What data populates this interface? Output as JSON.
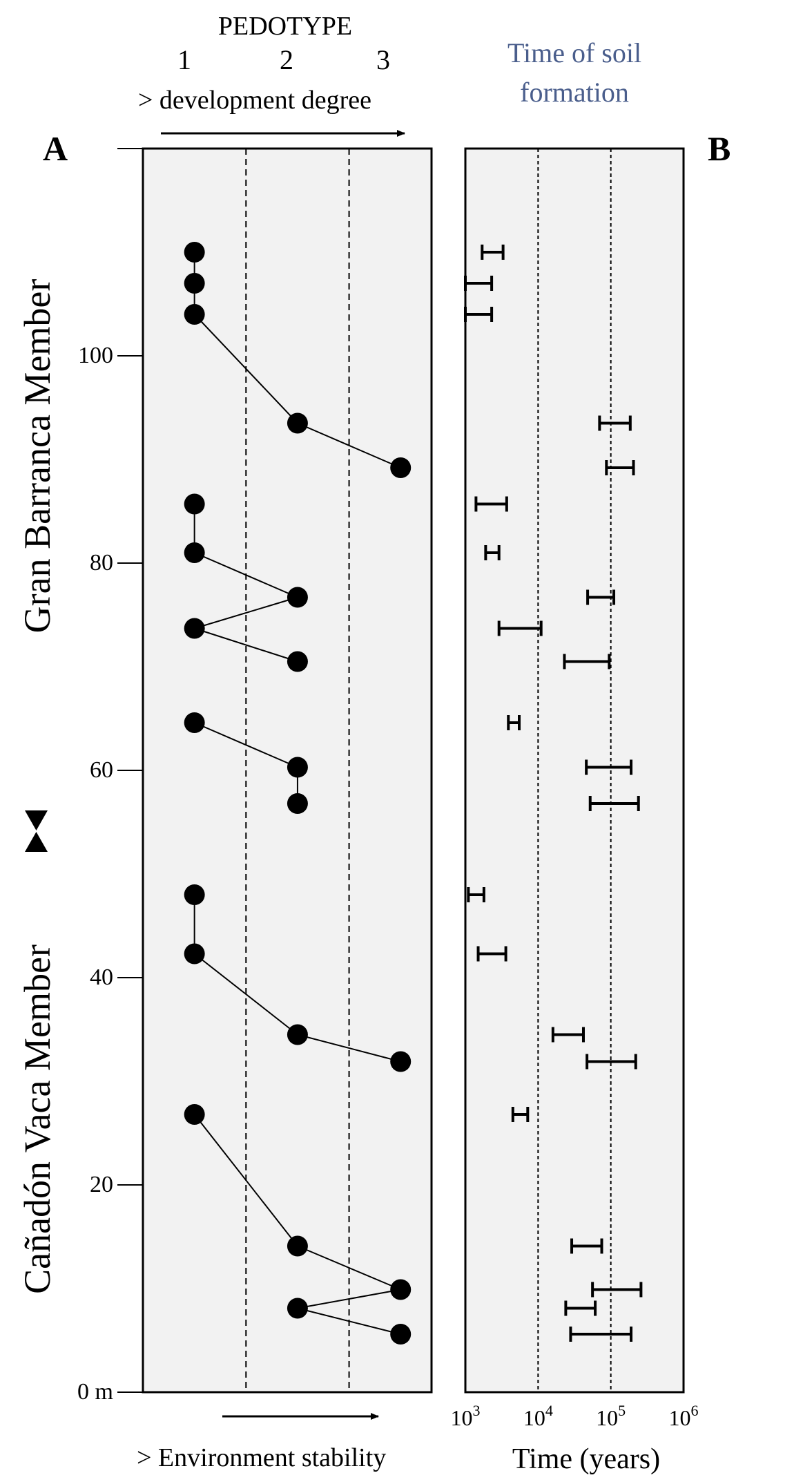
{
  "figure": {
    "panel_a_label": "A",
    "panel_b_label": "B",
    "pedotype_title": "PEDOTYPE",
    "pedotype_ticks": [
      "1",
      "2",
      "3"
    ],
    "development_label": "> development degree",
    "stability_label": "> Environment stability",
    "time_title_line1": "Time of soil",
    "time_title_line2": "formation",
    "time_title_color": "#4a5e8c",
    "member_upper": "Gran Barranca Member",
    "member_lower": "Cañadón Vaca Member",
    "panel_bg": "#f2f2f2",
    "mark_color": "#000000"
  },
  "chart_data": [
    {
      "type": "scatter",
      "panel": "A",
      "xlabel": "PEDOTYPE",
      "x_ticks": [
        1,
        2,
        3
      ],
      "ylabel": "",
      "y_ticks": [
        {
          "value": 0,
          "label": "0 m"
        },
        {
          "value": 20,
          "label": "20"
        },
        {
          "value": 40,
          "label": "40"
        },
        {
          "value": 60,
          "label": "60"
        },
        {
          "value": 80,
          "label": "80"
        },
        {
          "value": 100,
          "label": "100"
        }
      ],
      "ylim": [
        0,
        120
      ],
      "xlim": [
        0.5,
        3.3
      ],
      "grid_x": [
        1.5,
        2.5
      ],
      "points": [
        {
          "pedotype": 1,
          "level": 110.0
        },
        {
          "pedotype": 1,
          "level": 107.0
        },
        {
          "pedotype": 1,
          "level": 104.0
        },
        {
          "pedotype": 2,
          "level": 93.5
        },
        {
          "pedotype": 3,
          "level": 89.2
        },
        {
          "pedotype": 1,
          "level": 85.7
        },
        {
          "pedotype": 1,
          "level": 81.0
        },
        {
          "pedotype": 2,
          "level": 76.7
        },
        {
          "pedotype": 1,
          "level": 73.7
        },
        {
          "pedotype": 2,
          "level": 70.5
        },
        {
          "pedotype": 1,
          "level": 64.6
        },
        {
          "pedotype": 2,
          "level": 60.3
        },
        {
          "pedotype": 2,
          "level": 56.8
        },
        {
          "pedotype": 1,
          "level": 48.0
        },
        {
          "pedotype": 1,
          "level": 42.3
        },
        {
          "pedotype": 2,
          "level": 34.5
        },
        {
          "pedotype": 3,
          "level": 31.9
        },
        {
          "pedotype": 1,
          "level": 26.8
        },
        {
          "pedotype": 2,
          "level": 14.1
        },
        {
          "pedotype": 3,
          "level": 9.9
        },
        {
          "pedotype": 2,
          "level": 8.1
        },
        {
          "pedotype": 3,
          "level": 5.6
        }
      ],
      "connections": [
        [
          0,
          1
        ],
        [
          1,
          2
        ],
        [
          2,
          3
        ],
        [
          3,
          4
        ],
        [
          5,
          6
        ],
        [
          6,
          7
        ],
        [
          7,
          8
        ],
        [
          8,
          9
        ],
        [
          10,
          11
        ],
        [
          11,
          12
        ],
        [
          13,
          14
        ],
        [
          14,
          15
        ],
        [
          15,
          16
        ],
        [
          17,
          18
        ],
        [
          18,
          19
        ],
        [
          19,
          20
        ],
        [
          20,
          21
        ]
      ]
    },
    {
      "type": "range",
      "panel": "B",
      "xlabel": "Time (years)",
      "xscale": "log",
      "xlim": [
        1000,
        1000000
      ],
      "x_ticks": [
        {
          "value": 1000,
          "base": "10",
          "exp": "3"
        },
        {
          "value": 10000,
          "base": "10",
          "exp": "4"
        },
        {
          "value": 100000,
          "base": "10",
          "exp": "5"
        },
        {
          "value": 1000000,
          "base": "10",
          "exp": "6"
        }
      ],
      "grid_x": [
        10000,
        100000
      ],
      "ylim": [
        0,
        120
      ],
      "ranges": [
        {
          "level": 110.0,
          "min": 1700,
          "max": 3300
        },
        {
          "level": 107.0,
          "min": 1000,
          "max": 2300
        },
        {
          "level": 104.0,
          "min": 1000,
          "max": 2300
        },
        {
          "level": 93.5,
          "min": 70000,
          "max": 185000
        },
        {
          "level": 89.2,
          "min": 87000,
          "max": 205000
        },
        {
          "level": 85.7,
          "min": 1400,
          "max": 3700
        },
        {
          "level": 81.0,
          "min": 1900,
          "max": 2900
        },
        {
          "level": 76.7,
          "min": 48000,
          "max": 110000
        },
        {
          "level": 73.7,
          "min": 2900,
          "max": 11000
        },
        {
          "level": 70.5,
          "min": 23000,
          "max": 95000
        },
        {
          "level": 64.6,
          "min": 3900,
          "max": 5500
        },
        {
          "level": 60.3,
          "min": 46000,
          "max": 190000
        },
        {
          "level": 56.8,
          "min": 52000,
          "max": 240000
        },
        {
          "level": 48.0,
          "min": 1100,
          "max": 1800
        },
        {
          "level": 42.3,
          "min": 1500,
          "max": 3600
        },
        {
          "level": 34.5,
          "min": 16000,
          "max": 42000
        },
        {
          "level": 31.9,
          "min": 47000,
          "max": 220000
        },
        {
          "level": 26.8,
          "min": 4500,
          "max": 7200
        },
        {
          "level": 14.1,
          "min": 29000,
          "max": 75000
        },
        {
          "level": 9.9,
          "min": 56000,
          "max": 260000
        },
        {
          "level": 8.1,
          "min": 24000,
          "max": 61000
        },
        {
          "level": 5.6,
          "min": 28000,
          "max": 190000
        }
      ]
    }
  ]
}
